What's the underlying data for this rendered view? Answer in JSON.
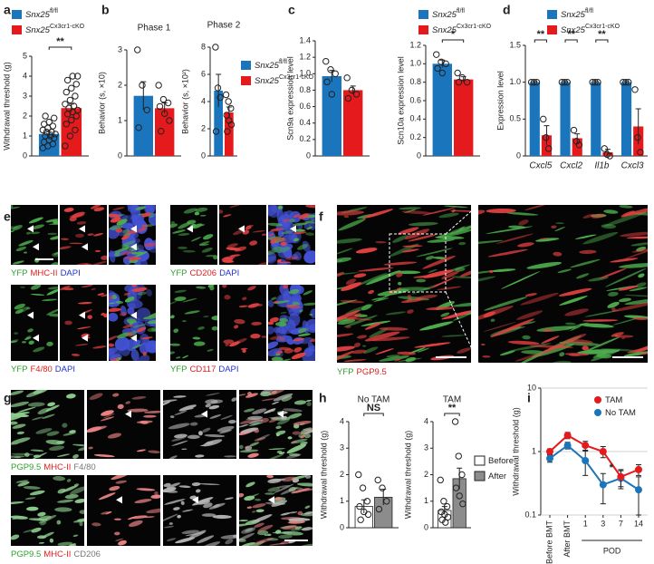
{
  "panel_labels": [
    "a",
    "b",
    "c",
    "d",
    "e",
    "f",
    "g",
    "h",
    "i"
  ],
  "chart_data": [
    {
      "type": "bar",
      "ylabel": "Withdrawal threshold (g)",
      "ylim": [
        0,
        5
      ],
      "yticks": [
        0,
        1,
        2,
        3,
        4,
        5
      ],
      "legend": true,
      "series": [
        {
          "name": "Snx25",
          "superscript": "fl/fl",
          "color": "#1b75bc",
          "values": [
            1.1
          ],
          "errors": [
            0.12
          ],
          "points": [
            [
              0.4,
              0.5,
              0.6,
              0.7,
              0.8,
              0.9,
              1.0,
              1.0,
              1.1,
              1.2,
              1.2,
              1.3,
              1.4,
              1.5,
              1.6,
              1.7,
              1.9,
              2.0
            ]
          ]
        },
        {
          "name": "Snx25",
          "superscript": "Cx3cr1-cKO",
          "color": "#e41a1c",
          "values": [
            2.4
          ],
          "errors": [
            0.2
          ],
          "points": [
            [
              0.5,
              1.0,
              1.3,
              1.6,
              1.8,
              2.0,
              2.1,
              2.2,
              2.3,
              2.4,
              2.5,
              2.6,
              2.8,
              3.0,
              3.2,
              3.4,
              3.6,
              3.8,
              4.0,
              4.0
            ]
          ]
        }
      ],
      "annotations": [
        {
          "text": "**"
        }
      ]
    },
    {
      "type": "bar",
      "title": "Phase 1",
      "ylabel": "Behavior (s, ×10)",
      "ylim": [
        0,
        3
      ],
      "yticks": [
        0,
        1,
        2,
        3
      ],
      "series": [
        {
          "color": "#1b75bc",
          "values": [
            1.7
          ],
          "errors": [
            0.4
          ],
          "points": [
            [
              3.0,
              2.0,
              1.3,
              0.8
            ]
          ]
        },
        {
          "color": "#e41a1c",
          "values": [
            1.35
          ],
          "errors": [
            0.15
          ],
          "points": [
            [
              2.0,
              1.6,
              1.5,
              1.4,
              1.2,
              1.0,
              0.7
            ]
          ]
        }
      ]
    },
    {
      "type": "bar",
      "title": "Phase 2",
      "ylabel": "Behavior (s, ×10²)",
      "ylim": [
        0,
        8
      ],
      "yticks": [
        0,
        2,
        4,
        6,
        8
      ],
      "legend": true,
      "series": [
        {
          "name": "Snx25",
          "superscript": "fl/fl",
          "color": "#1b75bc",
          "values": [
            4.8
          ],
          "errors": [
            1.2
          ],
          "points": [
            [
              8.0,
              5.0,
              4.3,
              1.8
            ]
          ]
        },
        {
          "name": "Snx25",
          "superscript": "Cx3cr1-cKO",
          "color": "#e41a1c",
          "values": [
            3.2
          ],
          "errors": [
            0.4
          ],
          "points": [
            [
              4.5,
              4.0,
              3.5,
              3.0,
              2.6,
              2.3,
              1.8
            ]
          ]
        }
      ]
    },
    {
      "type": "bar",
      "ylabel": "Scn9a expression level",
      "ylim": [
        0,
        1.4
      ],
      "yticks": [
        0,
        0.2,
        0.4,
        0.6,
        0.8,
        {
          "value": 1,
          "label": "1.0"
        },
        1.2,
        1.4
      ],
      "series": [
        {
          "color": "#1b75bc",
          "values": [
            0.97
          ],
          "errors": [
            0.07
          ],
          "points": [
            [
              1.15,
              1.05,
              1.0,
              0.9,
              0.75
            ]
          ]
        },
        {
          "color": "#e41a1c",
          "values": [
            0.8
          ],
          "errors": [
            0.05
          ],
          "points": [
            [
              0.95,
              0.8,
              0.75,
              0.7
            ]
          ]
        }
      ]
    },
    {
      "type": "bar",
      "ylabel": "Scn10a expression level",
      "ylim": [
        0,
        1.2
      ],
      "yticks": [
        0,
        0.2,
        0.4,
        0.6,
        0.8,
        {
          "value": 1,
          "label": "1.0"
        },
        1.2
      ],
      "legend": true,
      "series": [
        {
          "name": "Snx25",
          "superscript": "fl/fl",
          "color": "#1b75bc",
          "values": [
            1.0
          ],
          "errors": [
            0.04
          ],
          "points": [
            [
              1.1,
              1.02,
              1.0,
              0.95,
              0.9
            ]
          ]
        },
        {
          "name": "Snx25",
          "superscript": "Cx3cr1-cKO",
          "color": "#e41a1c",
          "values": [
            0.83
          ],
          "errors": [
            0.03
          ],
          "points": [
            [
              0.9,
              0.85,
              0.8,
              0.8
            ]
          ]
        }
      ],
      "annotations": [
        {
          "text": "*"
        }
      ]
    },
    {
      "type": "bar",
      "ylabel": "Expression level",
      "ylim": [
        0,
        1.5
      ],
      "yticks": [
        0,
        0.5,
        {
          "value": 1,
          "label": "1.0"
        },
        1.5
      ],
      "legend": true,
      "categories": [
        "Cxcl5",
        "Cxcl2",
        "Il1b",
        "Cxcl3"
      ],
      "series": [
        {
          "name": "Snx25",
          "superscript": "fl/fl",
          "color": "#1b75bc",
          "values": [
            1.0,
            1.0,
            1.0,
            1.0
          ],
          "errors": [
            0.01,
            0.01,
            0.01,
            0.01
          ],
          "points": [
            [
              1.0,
              1.0,
              1.0
            ],
            [
              1.0,
              1.0,
              1.0
            ],
            [
              1.0,
              1.0,
              1.0
            ],
            [
              1.0,
              1.0,
              1.0
            ]
          ]
        },
        {
          "name": "Snx25",
          "superscript": "Cx3cr1-cKO",
          "color": "#e41a1c",
          "values": [
            0.28,
            0.24,
            0.05,
            0.4
          ],
          "errors": [
            0.13,
            0.06,
            0.04,
            0.24
          ],
          "points": [
            [
              0.5,
              0.25,
              0.1
            ],
            [
              0.35,
              0.2,
              0.15
            ],
            [
              0.1,
              0.02,
              0.0
            ],
            [
              0.9,
              0.25,
              0.05
            ]
          ]
        }
      ],
      "annotations": [
        {
          "text": "**"
        },
        {
          "text": "**"
        },
        {
          "text": "**"
        }
      ]
    },
    {
      "type": "bar",
      "title": "No TAM",
      "ylabel": "Withdrawal threshold (g)",
      "ylim": [
        0,
        4
      ],
      "yticks": [
        0,
        1,
        2,
        3,
        4
      ],
      "bar_outline": true,
      "series": [
        {
          "color": "#ffffff",
          "values": [
            0.8
          ],
          "errors": [
            0.25
          ],
          "points": [
            [
              2.0,
              1.5,
              1.0,
              0.8,
              0.6,
              0.5,
              0.3
            ]
          ]
        },
        {
          "color": "#8c8c8c",
          "values": [
            1.15
          ],
          "errors": [
            0.3
          ],
          "points": [
            [
              1.8,
              1.5,
              1.0,
              0.7
            ]
          ]
        }
      ],
      "annotations": [
        {
          "text": "NS"
        }
      ]
    },
    {
      "type": "bar",
      "title": "TAM",
      "ylabel": "Withdrawal threshold (g)",
      "ylim": [
        0,
        4
      ],
      "yticks": [
        0,
        1,
        2,
        3,
        4
      ],
      "bar_outline": true,
      "legend": true,
      "series": [
        {
          "name": "Before",
          "color": "#ffffff",
          "values": [
            0.65
          ],
          "errors": [
            0.15
          ],
          "points": [
            [
              1.8,
              1.0,
              0.8,
              0.6,
              0.5,
              0.4,
              0.3,
              0.2
            ]
          ]
        },
        {
          "name": "After",
          "color": "#8c8c8c",
          "values": [
            1.85
          ],
          "errors": [
            0.4
          ],
          "points": [
            [
              4.0,
              2.7,
              2.0,
              1.5,
              1.2,
              0.9
            ]
          ]
        }
      ],
      "annotations": [
        {
          "text": "**"
        }
      ]
    },
    {
      "type": "line",
      "ylabel": "Withdrawal threshold (g)",
      "log_scale": true,
      "grid": true,
      "ylim": [
        0.1,
        10
      ],
      "yticks": [
        0.1,
        1,
        10
      ],
      "legend": true,
      "categories": [
        "Before BMT",
        "After BMT",
        "1",
        "3",
        "7",
        "14"
      ],
      "xlabel": "POD",
      "series": [
        {
          "name": "TAM",
          "color": "#e41a1c",
          "values": [
            1.0,
            1.8,
            1.25,
            1.0,
            0.4,
            0.52
          ],
          "errors": [
            0.1,
            0.2,
            0.2,
            0.2,
            0.12,
            0.1
          ]
        },
        {
          "name": "No TAM",
          "color": "#1b75bc",
          "values": [
            0.78,
            1.25,
            0.72,
            0.3,
            0.38,
            0.25
          ],
          "errors": [
            0.1,
            0.15,
            0.3,
            0.15,
            0.12,
            0.15
          ]
        }
      ],
      "annotations": [
        {
          "text": "*"
        }
      ]
    }
  ],
  "images": {
    "e": [
      {
        "label": [
          {
            "text": "YFP",
            "color": "#2ea02e"
          },
          {
            "text": "MHC-II",
            "color": "#e0201f"
          },
          {
            "text": "DAPI",
            "color": "#2233cc"
          }
        ]
      },
      {
        "label": [
          {
            "text": "YFP",
            "color": "#2ea02e"
          },
          {
            "text": "CD206",
            "color": "#e0201f"
          },
          {
            "text": "DAPI",
            "color": "#2233cc"
          }
        ]
      },
      {
        "label": [
          {
            "text": "YFP",
            "color": "#2ea02e"
          },
          {
            "text": "F4/80",
            "color": "#e0201f"
          },
          {
            "text": "DAPI",
            "color": "#2233cc"
          }
        ]
      },
      {
        "label": [
          {
            "text": "YFP",
            "color": "#2ea02e"
          },
          {
            "text": "CD117",
            "color": "#e0201f"
          },
          {
            "text": "DAPI",
            "color": "#2233cc"
          }
        ]
      }
    ],
    "f": {
      "label": [
        {
          "text": "YFP",
          "color": "#2ea02e"
        },
        {
          "text": "PGP9.5",
          "color": "#e0201f"
        }
      ]
    },
    "g": [
      {
        "label": [
          {
            "text": "PGP9.5",
            "color": "#2ea02e"
          },
          {
            "text": "MHC-II",
            "color": "#e0201f"
          },
          {
            "text": "F4/80",
            "color": "#777777"
          }
        ]
      },
      {
        "label": [
          {
            "text": "PGP9.5",
            "color": "#2ea02e"
          },
          {
            "text": "MHC-II",
            "color": "#e0201f"
          },
          {
            "text": "CD206",
            "color": "#777777"
          }
        ]
      }
    ]
  }
}
